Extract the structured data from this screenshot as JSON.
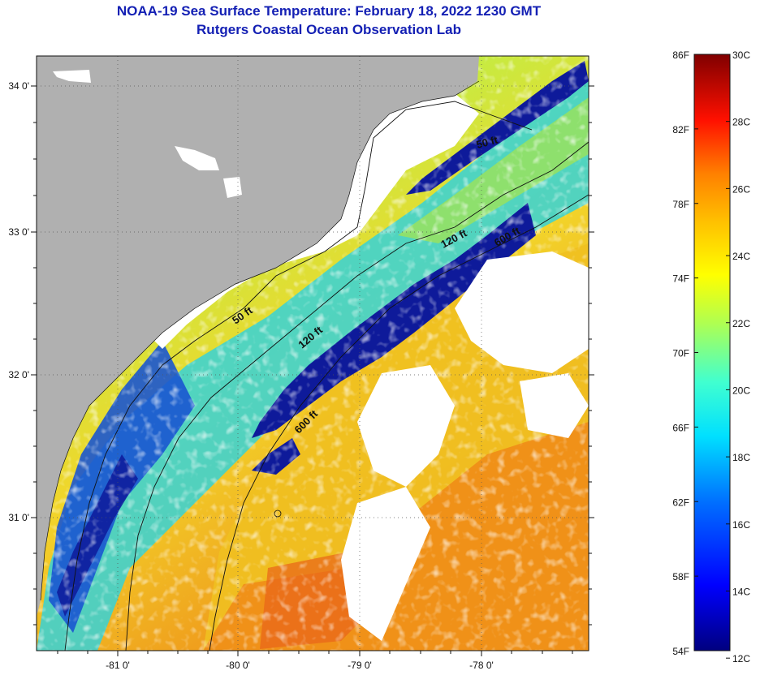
{
  "title": {
    "line1": "NOAA-19 Sea Surface Temperature:  February 18, 2022 1230 GMT",
    "line2": "Rutgers Coastal Ocean Observation Lab"
  },
  "map": {
    "lat_ticks": [
      "34 0'",
      "33 0'",
      "32 0'",
      "31 0'"
    ],
    "lon_ticks": [
      "-81 0'",
      "-80 0'",
      "-79 0'",
      "-78 0'"
    ],
    "contour_labels": [
      "50 ft",
      "120 ft",
      "600 ft",
      "50 ft",
      "120 ft",
      "600 ft"
    ],
    "colors": {
      "land": "#b0b0b0",
      "cloud": "#ffffff",
      "inshore_cold": "#0d1c9a",
      "cool": "#1f7fe0",
      "cyan": "#2fd8e8",
      "mid": "#b9e84a",
      "yellow": "#f2e233",
      "orange": "#f39a1c",
      "deep_orange": "#ec6a10"
    }
  },
  "colorbar": {
    "fahrenheit_labels": [
      "86F",
      "82F",
      "78F",
      "74F",
      "70F",
      "66F",
      "62F",
      "58F",
      "54F"
    ],
    "celsius_labels": [
      "30C",
      "28C",
      "26C",
      "24C",
      "22C",
      "20C",
      "18C",
      "16C",
      "14C",
      "12C"
    ],
    "range_f": [
      54,
      86
    ],
    "range_c": [
      12,
      30
    ]
  }
}
